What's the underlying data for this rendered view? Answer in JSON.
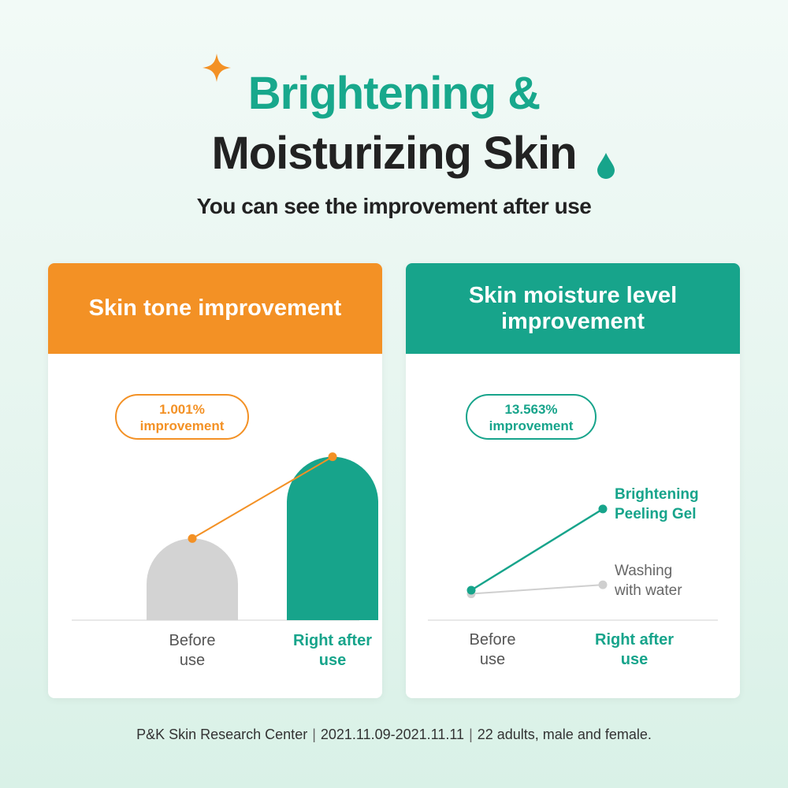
{
  "heading": {
    "title_line1": "Brightening &",
    "title_line2": "Moisturizing Skin",
    "subtitle": "You can see the improvement after use"
  },
  "colors": {
    "orange": "#f39125",
    "teal": "#17a48b",
    "gray_bar": "#d3d3d3",
    "gray_line": "#cccccc",
    "dark_text": "#222222"
  },
  "icons": [
    "sparkle-icon",
    "water-drop-icon"
  ],
  "chart_data": [
    {
      "type": "bar",
      "title": "Skin tone improvement",
      "callout_line1": "1.001%",
      "callout_line2": "improvement",
      "categories": [
        "Before use",
        "Right after use"
      ],
      "category_lines": [
        [
          "Before",
          "use"
        ],
        [
          "Right after",
          "use"
        ]
      ],
      "values": [
        100,
        101.001
      ],
      "ylim": [
        99,
        101.2
      ],
      "grid": false,
      "legend": "none"
    },
    {
      "type": "line",
      "title": "Skin moisture level improvement",
      "callout_line1": "13.563%",
      "callout_line2": "improvement",
      "categories": [
        "Before use",
        "Right after use"
      ],
      "category_lines": [
        [
          "Before",
          "use"
        ],
        [
          "Right after",
          "use"
        ]
      ],
      "ylim": [
        95,
        125
      ],
      "grid": false,
      "legend": "inline-right",
      "series": [
        {
          "name": "Brightening Peeling Gel",
          "name_lines": [
            "Brightening",
            "Peeling Gel"
          ],
          "values": [
            100,
            113.563
          ]
        },
        {
          "name": "Washing with water",
          "name_lines": [
            "Washing",
            "with water"
          ],
          "values": [
            99.4,
            100.9
          ]
        }
      ]
    }
  ],
  "footer": {
    "source": "P&K Skin Research Center",
    "dates": "2021.11.09-2021.11.11",
    "panel": "22 adults, male and female."
  }
}
